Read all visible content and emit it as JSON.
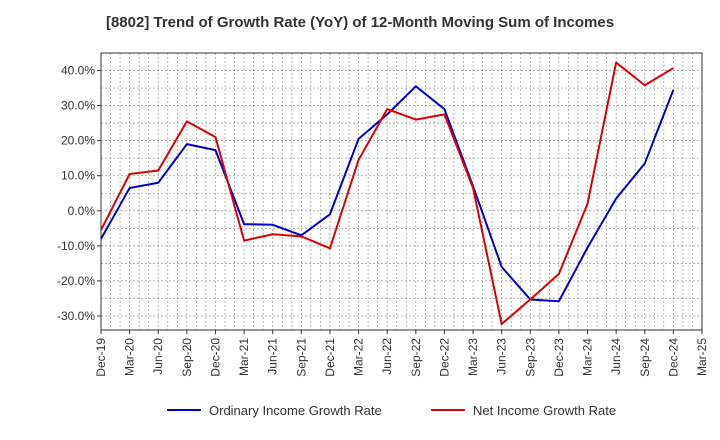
{
  "chart_data": {
    "type": "line",
    "title": "[8802]  Trend of Growth Rate (YoY) of 12-Month Moving Sum of Incomes",
    "xlabel": "",
    "ylabel": "",
    "ylim": [
      -34,
      45
    ],
    "yticks": [
      -30,
      -20,
      -10,
      0,
      10,
      20,
      30,
      40
    ],
    "ytick_labels": [
      "-30.0%",
      "-20.0%",
      "-10.0%",
      "0.0%",
      "10.0%",
      "20.0%",
      "30.0%",
      "40.0%"
    ],
    "x_tick_labels": [
      "Dec-19",
      "Mar-20",
      "Jun-20",
      "Sep-20",
      "Dec-20",
      "Mar-21",
      "Jun-21",
      "Sep-21",
      "Dec-21",
      "Mar-22",
      "Jun-22",
      "Sep-22",
      "Dec-22",
      "Mar-23",
      "Jun-23",
      "Sep-23",
      "Dec-23",
      "Mar-24",
      "Jun-24",
      "Sep-24",
      "Dec-24",
      "Mar-25"
    ],
    "categories": [
      "Dec-19",
      "Mar-20",
      "Jun-20",
      "Sep-20",
      "Dec-20",
      "Mar-21",
      "Jun-21",
      "Sep-21",
      "Dec-21",
      "Mar-22",
      "Jun-22",
      "Sep-22",
      "Dec-22",
      "Mar-23",
      "Jun-23",
      "Sep-23",
      "Dec-23",
      "Mar-24",
      "Jun-24",
      "Sep-24",
      "Dec-24"
    ],
    "grid": true,
    "legend_position": "bottom",
    "series": [
      {
        "name": "Ordinary Income Growth Rate",
        "color": "#0000cc",
        "values": [
          -8.0,
          6.5,
          8.0,
          19.0,
          17.3,
          -3.8,
          -4.0,
          -7.0,
          -1.0,
          20.5,
          27.5,
          35.5,
          29.0,
          7.0,
          -16.0,
          -25.3,
          -25.8,
          -10.5,
          3.5,
          13.5,
          34.5
        ]
      },
      {
        "name": "Net Income Growth Rate",
        "color": "#dd0000",
        "values": [
          -5.5,
          10.5,
          11.5,
          25.5,
          21.0,
          -8.5,
          -6.7,
          -7.3,
          -10.7,
          14.5,
          29.0,
          26.0,
          27.5,
          6.5,
          -32.3,
          -25.3,
          -18.0,
          2.0,
          42.3,
          35.8,
          40.7
        ]
      }
    ]
  }
}
